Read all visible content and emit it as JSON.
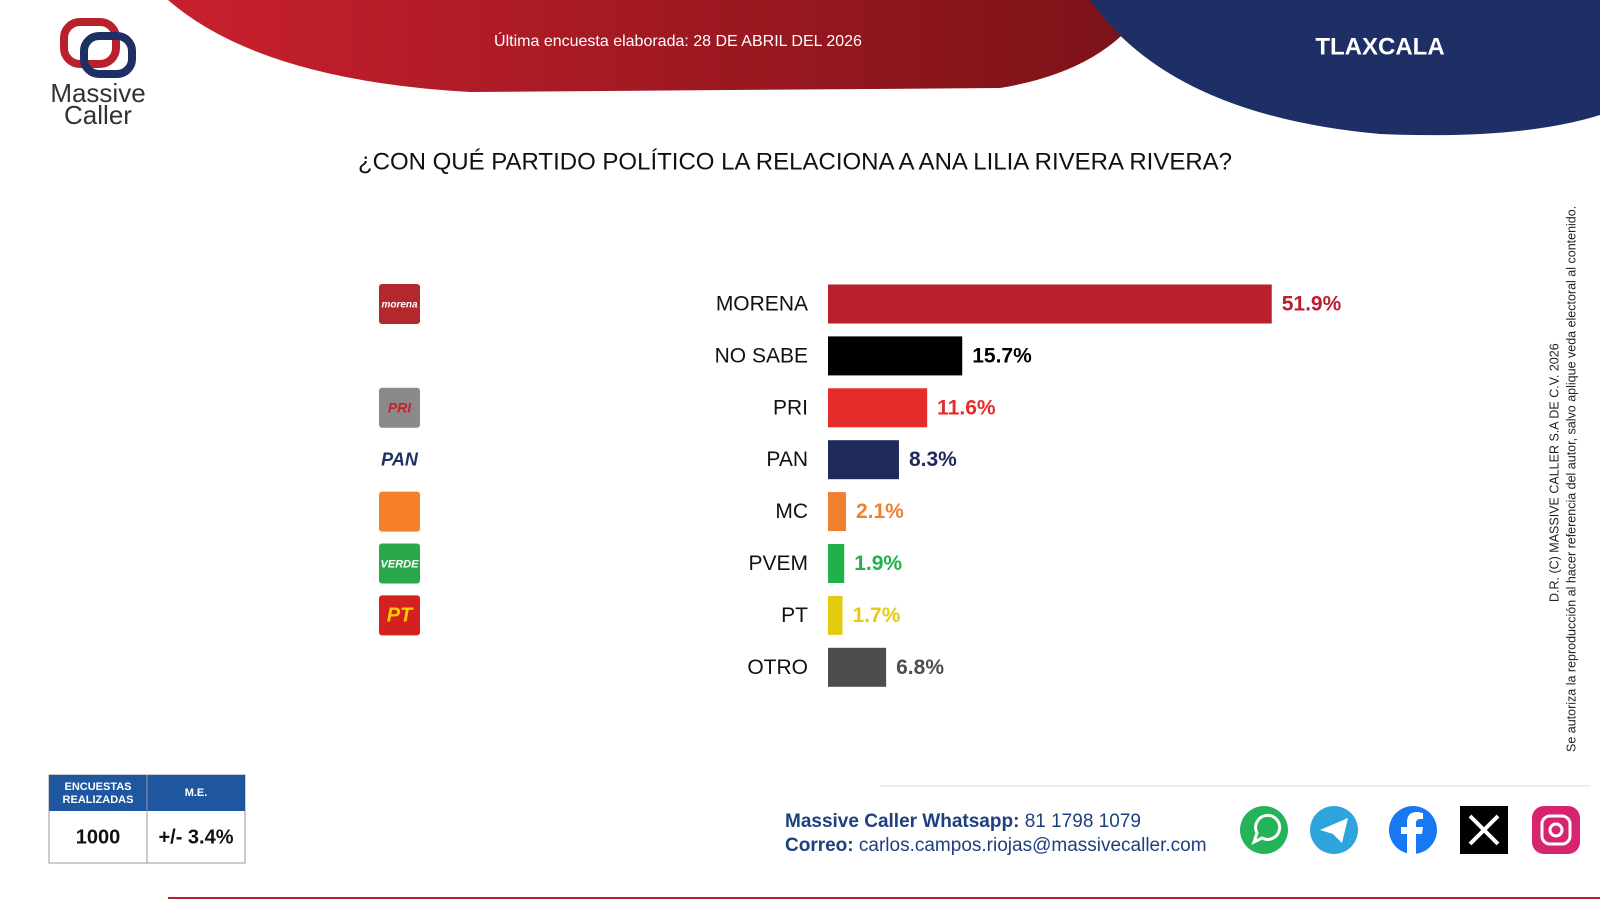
{
  "header": {
    "survey_date": "Última encuesta elaborada: 28 DE ABRIL DEL 2026",
    "region": "TLAXCALA"
  },
  "logo": {
    "line1": "Massive",
    "line2": "Caller"
  },
  "chart_data": {
    "type": "bar",
    "orientation": "horizontal",
    "title": "¿CON QUÉ PARTIDO POLÍTICO LA RELACIONA A ANA LILIA RIVERA RIVERA?",
    "categories": [
      "MORENA",
      "NO SABE",
      "PRI",
      "PAN",
      "MC",
      "PVEM",
      "PT",
      "OTRO"
    ],
    "values": [
      51.9,
      15.7,
      11.6,
      8.3,
      2.1,
      1.9,
      1.7,
      6.8
    ],
    "value_labels": [
      "51.9%",
      "15.7%",
      "11.6%",
      "8.3%",
      "2.1%",
      "1.9%",
      "1.7%",
      "6.8%"
    ],
    "colors": [
      "#b8202c",
      "#000000",
      "#e62b2b",
      "#1f2a5c",
      "#f08030",
      "#1fb24a",
      "#e3cc10",
      "#4d4d4d"
    ],
    "party_logos": [
      "morena",
      null,
      "PRI",
      "PAN",
      null,
      "VERDE",
      "PT",
      null
    ]
  },
  "copyright": [
    "D.R. (C) MASSIVE CALLER S.A DE C.V. 2026",
    "Se autoriza la reproducción al hacer referencia del autor, salvo aplique veda electoral al contenido."
  ],
  "sample_table": {
    "headers": [
      "ENCUESTAS REALIZADAS",
      "M.E."
    ],
    "values": [
      "1000",
      "+/- 3.4%"
    ]
  },
  "contact": [
    {
      "label": "Massive Caller Whatsapp:",
      "value": "81 1798 1079"
    },
    {
      "label": "Correo:",
      "value": "carlos.campos.riojas@massivecaller.com"
    }
  ]
}
